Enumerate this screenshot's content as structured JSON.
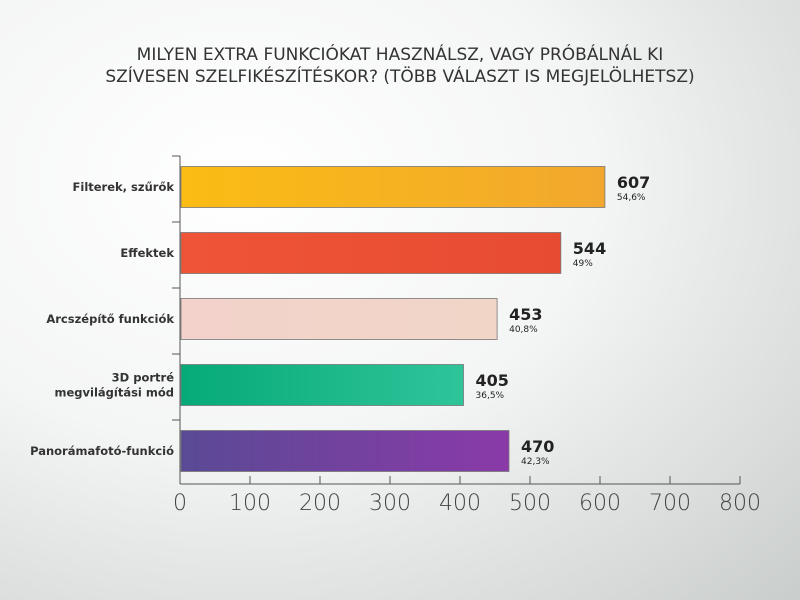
{
  "title_lines": [
    "MILYEN EXTRA FUNKCIÓKAT HASZNÁLSZ, VAGY PRÓBÁLNÁL KI",
    "SZÍVESEN SZELFIKÉSZÍTÉSKOR? (TÖBB VÁLASZT IS MEGJELÖLHETSZ)"
  ],
  "colors": {
    "bar_gradients": [
      [
        "#fbbc14",
        "#f2a82e"
      ],
      [
        "#ef5436",
        "#e74c33"
      ],
      [
        "#f2d2cb",
        "#f1d6c7"
      ],
      [
        "#06aa78",
        "#2fc49a"
      ],
      [
        "#5a4a95",
        "#8a3aa8"
      ]
    ]
  },
  "chart_data": {
    "type": "bar",
    "orientation": "horizontal",
    "title": "MILYEN EXTRA FUNKCIÓKAT HASZNÁLSZ, VAGY PRÓBÁLNÁL KI SZÍVESEN SZELFIKÉSZÍTÉSKOR? (TÖBB VÁLASZT IS MEGJELÖLHETSZ)",
    "categories": [
      [
        "Filterek, szűrők"
      ],
      [
        "Effektek"
      ],
      [
        "Arcszépítő funkciók"
      ],
      [
        "3D portré",
        "megvilágítási mód"
      ],
      [
        "Panorámafotó-funkció"
      ]
    ],
    "values": [
      607,
      544,
      453,
      405,
      470
    ],
    "percent_labels": [
      "54,6%",
      "49%",
      "40,8%",
      "36,5%",
      "42,3%"
    ],
    "xlim": [
      0,
      800
    ],
    "xticks": [
      0,
      100,
      200,
      300,
      400,
      500,
      600,
      700,
      800
    ],
    "grid": false,
    "legend": "none"
  }
}
